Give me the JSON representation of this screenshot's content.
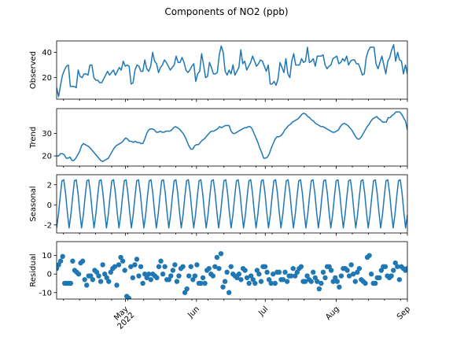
{
  "chart_data": {
    "type": "line",
    "title": "Components of NO2 (ppb)",
    "colors": {
      "series": "#1f77b4"
    },
    "x_axis": {
      "start": "2022-04-01",
      "end": "2022-09-01",
      "tick_dates": [
        "2022-05-01",
        "2022-06-01",
        "2022-07-01",
        "2022-08-01",
        "2022-09-01"
      ],
      "tick_labels": [
        "May\n2022",
        "Jun",
        "Jul",
        "Aug",
        "Sep"
      ]
    },
    "panels": [
      {
        "id": "observed",
        "type": "line",
        "ylabel": "Observed",
        "ylim": [
          3,
          49
        ],
        "yticks": [
          20,
          40
        ],
        "values": [
          12,
          5,
          14,
          22,
          26,
          29,
          30,
          13,
          13,
          13,
          12,
          26,
          21,
          20,
          23,
          23,
          22,
          30,
          30,
          20,
          18,
          18,
          16,
          16,
          19,
          22,
          25,
          22,
          24,
          26,
          22,
          25,
          28,
          26,
          33,
          29,
          30,
          29,
          15,
          16,
          26,
          30,
          29,
          25,
          25,
          34,
          27,
          25,
          29,
          40,
          33,
          31,
          24,
          28,
          30,
          34,
          32,
          29,
          26,
          28,
          30,
          37,
          32,
          32,
          36,
          32,
          26,
          24,
          26,
          29,
          31,
          17,
          23,
          25,
          39,
          30,
          20,
          21,
          32,
          28,
          23,
          23,
          24,
          38,
          45,
          40,
          25,
          22,
          26,
          23,
          30,
          22,
          25,
          28,
          42,
          31,
          33,
          26,
          29,
          32,
          37,
          33,
          29,
          31,
          34,
          33,
          29,
          25,
          30,
          15,
          15,
          17,
          14,
          19,
          32,
          28,
          24,
          35,
          23,
          20,
          33,
          39,
          30,
          30,
          30,
          35,
          32,
          33,
          44,
          32,
          33,
          35,
          29,
          37,
          37,
          37,
          38,
          30,
          27,
          29,
          30,
          35,
          36,
          37,
          31,
          32,
          35,
          33,
          37,
          30,
          33,
          34,
          34,
          31,
          31,
          27,
          22,
          23,
          36,
          41,
          44,
          44,
          44,
          31,
          27,
          32,
          37,
          30,
          23,
          33,
          36,
          42,
          46,
          33,
          40,
          34,
          33,
          23,
          30,
          23
        ]
      },
      {
        "id": "trend",
        "type": "line",
        "ylabel": "Trend",
        "ylim": [
          15.5,
          41
        ],
        "yticks": [
          20,
          30
        ],
        "values": [
          20,
          20,
          21,
          21,
          20.5,
          19,
          19,
          19.5,
          18,
          18,
          19,
          20.5,
          22,
          24.5,
          25.5,
          25,
          24.5,
          24,
          23,
          22,
          21,
          20,
          19,
          18,
          17.5,
          18,
          18.5,
          19,
          20.5,
          22,
          23.5,
          24.5,
          25,
          25.5,
          26,
          27,
          28,
          27.5,
          26.5,
          26.5,
          26,
          26.5,
          26,
          26,
          25.5,
          25.5,
          27.5,
          30,
          31.5,
          32,
          32,
          31.5,
          30.5,
          30.5,
          31,
          30.5,
          30.5,
          31,
          31,
          31,
          31.5,
          32.5,
          33,
          32.5,
          32,
          31,
          30,
          28.5,
          26.5,
          24.5,
          23,
          23,
          24.5,
          25,
          25,
          26,
          27,
          27.5,
          28.5,
          29.5,
          30.5,
          31,
          31,
          31.5,
          32,
          33,
          32.5,
          33,
          33.5,
          33.5,
          33.5,
          31,
          30,
          30,
          30.5,
          31,
          31.5,
          32,
          32.5,
          32.5,
          33,
          33,
          32,
          30,
          28,
          26,
          23.5,
          21.5,
          19,
          19,
          19.5,
          21,
          23.5,
          25.5,
          27.5,
          28.5,
          28.5,
          29,
          30,
          31.5,
          32.5,
          33.5,
          34,
          35,
          35.5,
          36,
          36.5,
          37.5,
          38.5,
          39,
          38.5,
          37.5,
          37,
          36,
          35.5,
          34.5,
          34,
          33.5,
          33,
          33,
          32.5,
          32,
          31.5,
          31,
          30.5,
          30.5,
          31,
          31.5,
          33,
          34,
          34.5,
          34,
          33.5,
          32.5,
          31.5,
          30,
          28.5,
          27.5,
          27.5,
          28.5,
          30,
          31.5,
          33,
          34,
          35.5,
          36.5,
          37,
          37.5,
          36.5,
          36,
          35,
          35,
          35,
          37,
          37,
          38,
          38.5,
          39.5,
          39.5,
          39.5,
          38.5,
          37,
          35.5,
          31.5
        ]
      },
      {
        "id": "seasonal",
        "type": "line",
        "ylabel": "Seasonal",
        "ylim": [
          -2.8,
          3.0
        ],
        "yticks": [
          -2,
          0,
          2
        ],
        "period_days": 7,
        "weekly_pattern": [
          -2.3,
          -1.0,
          0.8,
          2.4,
          2.5,
          1.2,
          -0.7
        ],
        "values": [
          -2.3,
          -1,
          0.8,
          2.4,
          2.5,
          1.2,
          -0.7,
          -2.3,
          -1,
          0.8,
          2.4,
          2.5,
          1.2,
          -0.7,
          -2.3,
          -1,
          0.8,
          2.4,
          2.5,
          1.2,
          -0.7,
          -2.3,
          -1,
          0.8,
          2.4,
          2.5,
          1.2,
          -0.7,
          -2.3,
          -1,
          0.8,
          2.4,
          2.5,
          1.2,
          -0.7,
          -2.3,
          -1,
          0.8,
          2.4,
          2.5,
          1.2,
          -0.7,
          -2.3,
          -1,
          0.8,
          2.4,
          2.5,
          1.2,
          -0.7,
          -2.3,
          -1,
          0.8,
          2.4,
          2.5,
          1.2,
          -0.7,
          -2.3,
          -1,
          0.8,
          2.4,
          2.5,
          1.2,
          -0.7,
          -2.3,
          -1,
          0.8,
          2.4,
          2.5,
          1.2,
          -0.7,
          -2.3,
          -1,
          0.8,
          2.4,
          2.5,
          1.2,
          -0.7,
          -2.3,
          -1,
          0.8,
          2.4,
          2.5,
          1.2,
          -0.7,
          -2.3,
          -1,
          0.8,
          2.4,
          2.5,
          1.2,
          -0.7,
          -2.3,
          -1,
          0.8,
          2.4,
          2.5,
          1.2,
          -0.7,
          -2.3,
          -1,
          0.8,
          2.4,
          2.5,
          1.2,
          -0.7,
          -2.3,
          -1,
          0.8,
          2.4,
          2.5,
          1.2,
          -0.7,
          -2.3,
          -1,
          0.8,
          2.4,
          2.5,
          1.2,
          -0.7,
          -2.3,
          -1,
          0.8,
          2.4,
          2.5,
          1.2,
          -0.7,
          -2.3,
          -1,
          0.8,
          2.4,
          2.5,
          1.2,
          -0.7,
          -2.3,
          -1,
          0.8,
          2.4,
          2.5,
          1.2,
          -0.7,
          -2.3,
          -1,
          0.8,
          2.4,
          2.5,
          1.2,
          -0.7,
          -2.3,
          -1,
          0.8,
          2.4,
          2.5,
          1.2,
          -0.7,
          -2.3,
          -1,
          0.8,
          2.4,
          2.5,
          1.2,
          -0.7,
          -2.3,
          -1,
          0.8,
          2.4,
          2.5,
          1.2,
          -0.7,
          -2.3,
          -1,
          0.8,
          2.4,
          2.5,
          1.2,
          -0.7,
          -2.3,
          -1,
          0.8,
          2.4,
          2.5,
          1.2,
          -0.7,
          -2.3,
          -1,
          0.8,
          2.4,
          2.5,
          1.2,
          -0.7,
          -2.3,
          -1,
          0.8,
          2.4,
          2.5,
          1.2,
          -0.7,
          -2.3,
          -1
        ]
      },
      {
        "id": "residual",
        "type": "scatter",
        "ylabel": "Residual",
        "ylim": [
          -13.5,
          17.5
        ],
        "yticks": [
          -10,
          0,
          10
        ],
        "values": [
          3,
          5,
          7,
          9.5,
          -5,
          -5,
          -5,
          -5,
          7,
          2,
          1,
          0,
          6,
          7,
          -3,
          -6,
          -1,
          -1,
          -3,
          2,
          1,
          -1,
          -4,
          5,
          0,
          -2,
          -4,
          1,
          3,
          4,
          -6,
          5,
          9,
          7,
          2,
          -12,
          -13,
          4,
          -2,
          5,
          8,
          -1,
          4,
          -5,
          0,
          -2,
          0,
          -3,
          0,
          -1,
          -2,
          4,
          7,
          0,
          4,
          -3,
          -3,
          -1,
          2,
          5,
          -4,
          -1,
          3,
          4,
          -10,
          -8,
          -1,
          4,
          -3,
          -1,
          5,
          -5,
          -5,
          -2,
          -5,
          2,
          3,
          0,
          -1,
          4,
          9,
          3,
          11,
          -7,
          -4,
          1,
          -10,
          4,
          0,
          -1,
          -2,
          0,
          -3,
          3,
          2,
          -2,
          -5,
          -1,
          -3,
          -5,
          2,
          0,
          -4,
          4,
          4,
          1,
          -3,
          -5,
          0,
          -5,
          1,
          1,
          -3,
          -3,
          1,
          -4,
          -1,
          -1,
          3,
          -1,
          1,
          3,
          4,
          -4,
          -4,
          -1,
          -3,
          -4,
          1,
          -2,
          -4,
          -8,
          -5,
          1,
          -2,
          4,
          4,
          2,
          -4,
          -2,
          -4,
          -7,
          -1,
          3,
          3,
          2,
          -1,
          5,
          0,
          -4,
          1,
          3,
          -3,
          -4,
          -5,
          9,
          10,
          0,
          -5,
          -5,
          -2,
          -2,
          2,
          4,
          4,
          -1,
          -2,
          -1,
          2,
          6,
          4,
          -3,
          4,
          3,
          2,
          3
        ]
      }
    ]
  }
}
